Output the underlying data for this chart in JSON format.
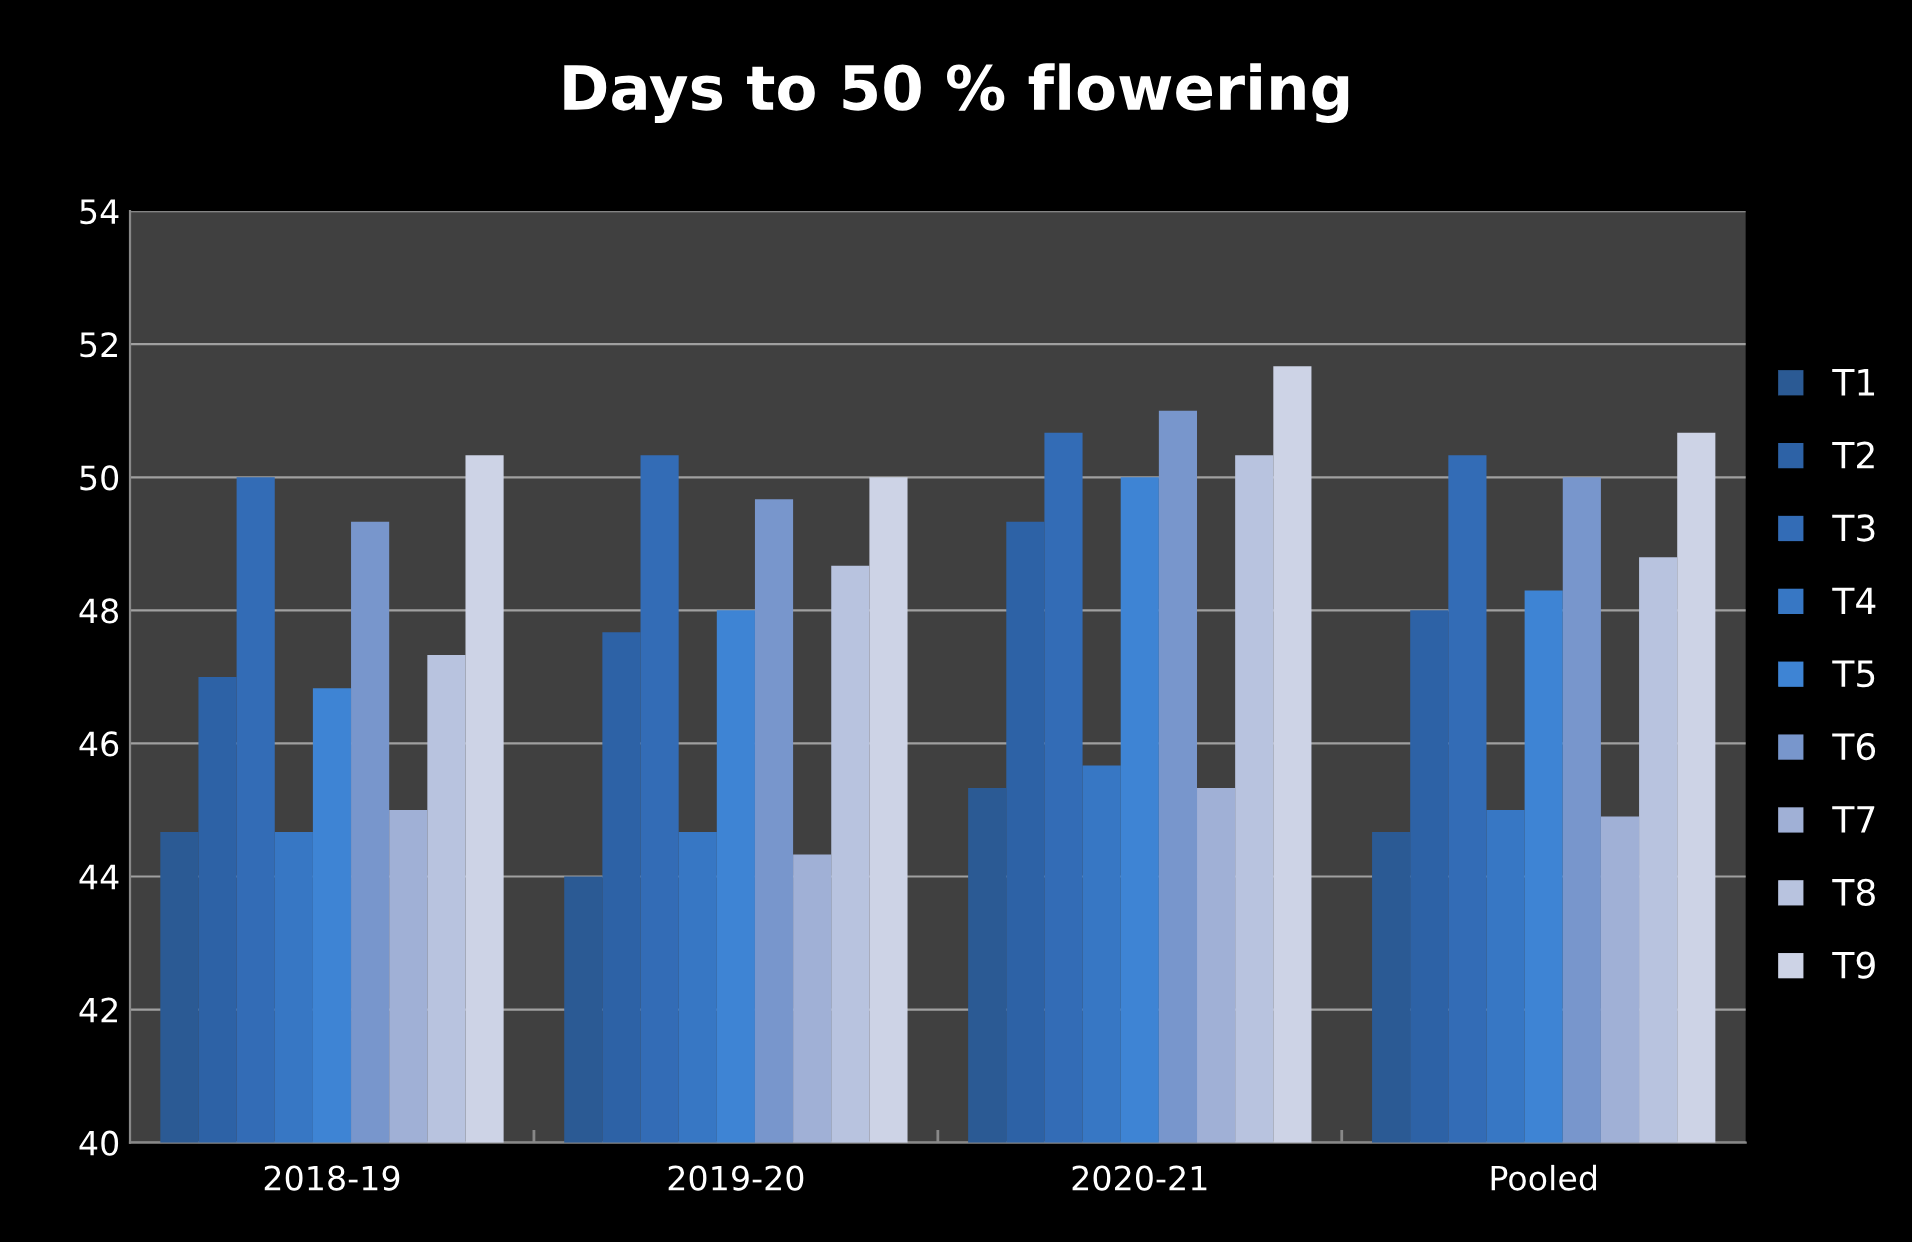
{
  "chart_data": {
    "type": "bar",
    "title": "Days to 50 % flowering",
    "categories": [
      "2018-19",
      "2019-20",
      "2020-21",
      "Pooled"
    ],
    "series": [
      {
        "name": "T1",
        "color": "#2b5a94",
        "values": [
          44.67,
          44,
          45.33,
          44.67
        ]
      },
      {
        "name": "T2",
        "color": "#2d62a6",
        "values": [
          47,
          47.67,
          49.33,
          48
        ]
      },
      {
        "name": "T3",
        "color": "#336cb6",
        "values": [
          50,
          50.33,
          50.67,
          50.33
        ]
      },
      {
        "name": "T4",
        "color": "#3777c4",
        "values": [
          44.67,
          44.67,
          45.67,
          45
        ]
      },
      {
        "name": "T5",
        "color": "#3e84d4",
        "values": [
          46.83,
          48,
          50,
          48.3
        ]
      },
      {
        "name": "T6",
        "color": "#7896cc",
        "values": [
          49.33,
          49.67,
          51,
          50
        ]
      },
      {
        "name": "T7",
        "color": "#a0b0d6",
        "values": [
          45,
          44.33,
          45.33,
          44.9
        ]
      },
      {
        "name": "T8",
        "color": "#b8c3df",
        "values": [
          47.33,
          48.67,
          50.33,
          48.8
        ]
      },
      {
        "name": "T9",
        "color": "#cdd3e6",
        "values": [
          50.33,
          50,
          51.67,
          50.67
        ]
      }
    ],
    "ylim": [
      40,
      54
    ],
    "yticks": [
      40,
      42,
      44,
      46,
      48,
      50,
      52,
      54
    ],
    "grid": "y",
    "legend": "right"
  }
}
